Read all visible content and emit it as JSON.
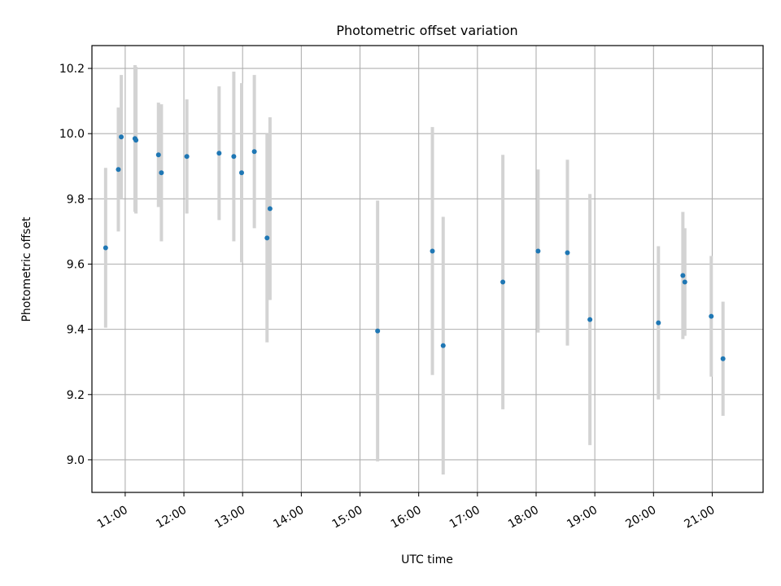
{
  "chart_data": {
    "type": "scatter",
    "title": "Photometric offset variation",
    "xlabel": "UTC time",
    "ylabel": "Photometric offset",
    "xlim": [
      "10:26",
      "21:52"
    ],
    "ylim": [
      8.9,
      10.27
    ],
    "grid": true,
    "x_ticks": [
      "11:00",
      "12:00",
      "13:00",
      "14:00",
      "15:00",
      "16:00",
      "17:00",
      "18:00",
      "19:00",
      "20:00",
      "21:00"
    ],
    "y_ticks": [
      9.0,
      9.2,
      9.4,
      9.6,
      9.8,
      10.0,
      10.2
    ],
    "marker_color": "#1f77b4",
    "errorbar_color": "#d3d3d3",
    "points": [
      {
        "x": "10:40",
        "y": 9.65,
        "err": 0.245
      },
      {
        "x": "10:53",
        "y": 9.89,
        "err": 0.19
      },
      {
        "x": "10:56",
        "y": 9.99,
        "err": 0.19
      },
      {
        "x": "11:10",
        "y": 9.985,
        "err": 0.225
      },
      {
        "x": "11:11",
        "y": 9.98,
        "err": 0.225
      },
      {
        "x": "11:34",
        "y": 9.935,
        "err": 0.16
      },
      {
        "x": "11:37",
        "y": 9.88,
        "err": 0.21
      },
      {
        "x": "12:03",
        "y": 9.93,
        "err": 0.175
      },
      {
        "x": "12:36",
        "y": 9.94,
        "err": 0.205
      },
      {
        "x": "12:51",
        "y": 9.93,
        "err": 0.26
      },
      {
        "x": "12:59",
        "y": 9.88,
        "err": 0.275
      },
      {
        "x": "13:12",
        "y": 9.945,
        "err": 0.235
      },
      {
        "x": "13:25",
        "y": 9.68,
        "err": 0.32
      },
      {
        "x": "13:28",
        "y": 9.77,
        "err": 0.28
      },
      {
        "x": "15:18",
        "y": 9.395,
        "err": 0.4
      },
      {
        "x": "16:14",
        "y": 9.64,
        "err": 0.38
      },
      {
        "x": "16:25",
        "y": 9.35,
        "err": 0.395
      },
      {
        "x": "17:26",
        "y": 9.545,
        "err": 0.39
      },
      {
        "x": "18:02",
        "y": 9.64,
        "err": 0.25
      },
      {
        "x": "18:32",
        "y": 9.635,
        "err": 0.285
      },
      {
        "x": "18:55",
        "y": 9.43,
        "err": 0.385
      },
      {
        "x": "20:05",
        "y": 9.42,
        "err": 0.235
      },
      {
        "x": "20:30",
        "y": 9.565,
        "err": 0.195
      },
      {
        "x": "20:32",
        "y": 9.545,
        "err": 0.165
      },
      {
        "x": "20:59",
        "y": 9.44,
        "err": 0.185
      },
      {
        "x": "21:11",
        "y": 9.31,
        "err": 0.175
      }
    ]
  }
}
